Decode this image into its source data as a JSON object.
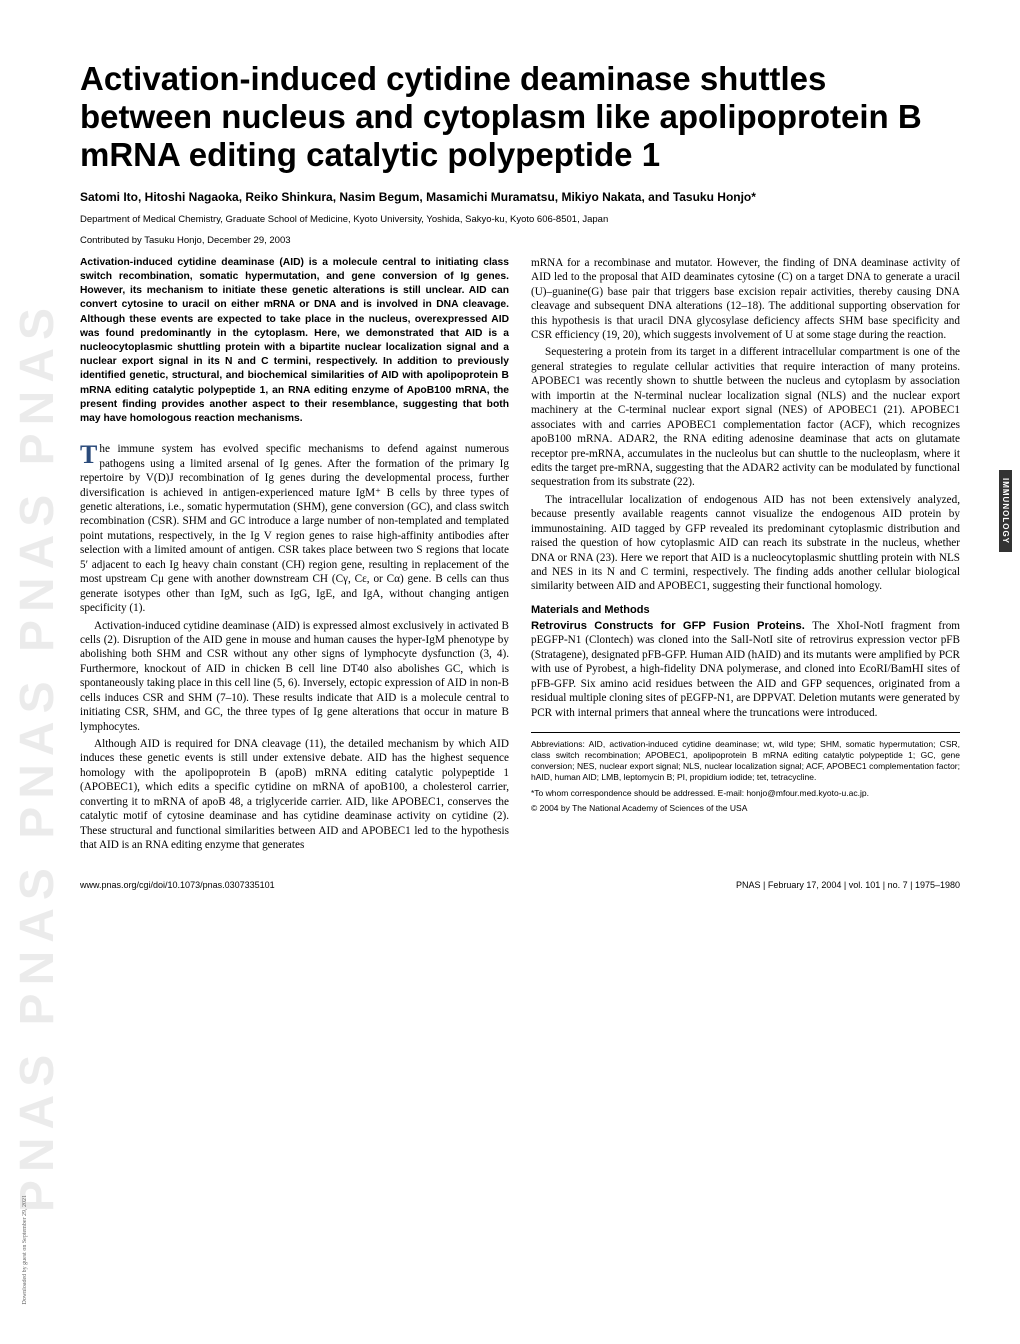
{
  "watermark": "PNAS  PNAS  PNAS  PNAS  PNAS",
  "download_note": "Downloaded by guest on September 29, 2021",
  "title": "Activation-induced cytidine deaminase shuttles between nucleus and cytoplasm like apolipoprotein B mRNA editing catalytic polypeptide 1",
  "authors": "Satomi Ito, Hitoshi Nagaoka, Reiko Shinkura, Nasim Begum, Masamichi Muramatsu, Mikiyo Nakata, and Tasuku Honjo*",
  "affiliation": "Department of Medical Chemistry, Graduate School of Medicine, Kyoto University, Yoshida, Sakyo-ku, Kyoto 606-8501, Japan",
  "contributed": "Contributed by Tasuku Honjo, December 29, 2003",
  "abstract": "Activation-induced cytidine deaminase (AID) is a molecule central to initiating class switch recombination, somatic hypermutation, and gene conversion of Ig genes. However, its mechanism to initiate these genetic alterations is still unclear. AID can convert cytosine to uracil on either mRNA or DNA and is involved in DNA cleavage. Although these events are expected to take place in the nucleus, overexpressed AID was found predominantly in the cytoplasm. Here, we demonstrated that AID is a nucleocytoplasmic shuttling protein with a bipartite nuclear localization signal and a nuclear export signal in its N and C termini, respectively. In addition to previously identified genetic, structural, and biochemical similarities of AID with apolipoprotein B mRNA editing catalytic polypeptide 1, an RNA editing enzyme of ApoB100 mRNA, the present finding provides another aspect to their resemblance, suggesting that both may have homologous reaction mechanisms.",
  "para1_first": "T",
  "para1": "he immune system has evolved specific mechanisms to defend against numerous pathogens using a limited arsenal of Ig genes. After the formation of the primary Ig repertoire by V(D)J recombination of Ig genes during the developmental process, further diversification is achieved in antigen-experienced mature IgM⁺ B cells by three types of genetic alterations, i.e., somatic hypermutation (SHM), gene conversion (GC), and class switch recombination (CSR). SHM and GC introduce a large number of non-templated and templated point mutations, respectively, in the Ig V region genes to raise high-affinity antibodies after selection with a limited amount of antigen. CSR takes place between two S regions that locate 5′ adjacent to each Ig heavy chain constant (CH) region gene, resulting in replacement of the most upstream Cμ gene with another downstream CH (Cγ, Cε, or Cα) gene. B cells can thus generate isotypes other than IgM, such as IgG, IgE, and IgA, without changing antigen specificity (1).",
  "para2": "Activation-induced cytidine deaminase (AID) is expressed almost exclusively in activated B cells (2). Disruption of the AID gene in mouse and human causes the hyper-IgM phenotype by abolishing both SHM and CSR without any other signs of lymphocyte dysfunction (3, 4). Furthermore, knockout of AID in chicken B cell line DT40 also abolishes GC, which is spontaneously taking place in this cell line (5, 6). Inversely, ectopic expression of AID in non-B cells induces CSR and SHM (7–10). These results indicate that AID is a molecule central to initiating CSR, SHM, and GC, the three types of Ig gene alterations that occur in mature B lymphocytes.",
  "para3": "Although AID is required for DNA cleavage (11), the detailed mechanism by which AID induces these genetic events is still under extensive debate. AID has the highest sequence homology with the apolipoprotein B (apoB) mRNA editing catalytic polypeptide 1 (APOBEC1), which edits a specific cytidine on mRNA of apoB100, a cholesterol carrier, converting it to mRNA of apoB 48, a triglyceride carrier. AID, like APOBEC1, conserves the catalytic motif of cytosine deaminase and has cytidine deaminase activity on cytidine (2). These structural and functional similarities between AID and APOBEC1 led to the hypothesis that AID is an RNA editing enzyme that generates",
  "para4": "mRNA for a recombinase and mutator. However, the finding of DNA deaminase activity of AID led to the proposal that AID deaminates cytosine (C) on a target DNA to generate a uracil (U)–guanine(G) base pair that triggers base excision repair activities, thereby causing DNA cleavage and subsequent DNA alterations (12–18). The additional supporting observation for this hypothesis is that uracil DNA glycosylase deficiency affects SHM base specificity and CSR efficiency (19, 20), which suggests involvement of U at some stage during the reaction.",
  "para5": "Sequestering a protein from its target in a different intracellular compartment is one of the general strategies to regulate cellular activities that require interaction of many proteins. APOBEC1 was recently shown to shuttle between the nucleus and cytoplasm by association with importin at the N-terminal nuclear localization signal (NLS) and the nuclear export machinery at the C-terminal nuclear export signal (NES) of APOBEC1 (21). APOBEC1 associates with and carries APOBEC1 complementation factor (ACF), which recognizes apoB100 mRNA. ADAR2, the RNA editing adenosine deaminase that acts on glutamate receptor pre-mRNA, accumulates in the nucleolus but can shuttle to the nucleoplasm, where it edits the target pre-mRNA, suggesting that the ADAR2 activity can be modulated by functional sequestration from its substrate (22).",
  "para6": "The intracellular localization of endogenous AID has not been extensively analyzed, because presently available reagents cannot visualize the endogenous AID protein by immunostaining. AID tagged by GFP revealed its predominant cytoplasmic distribution and raised the question of how cytoplasmic AID can reach its substrate in the nucleus, whether DNA or RNA (23). Here we report that AID is a nucleocytoplasmic shuttling protein with NLS and NES in its N and C termini, respectively. The finding adds another cellular biological similarity between AID and APOBEC1, suggesting their functional homology.",
  "methods_head": "Materials and Methods",
  "retro_head": "Retrovirus Constructs for GFP Fusion Proteins. ",
  "retro_body": "The XhoI-NotI fragment from pEGFP-N1 (Clontech) was cloned into the SalI-NotI site of retrovirus expression vector pFB (Stratagene), designated pFB-GFP. Human AID (hAID) and its mutants were amplified by PCR with use of Pyrobest, a high-fidelity DNA polymerase, and cloned into EcoRI/BamHI sites of pFB-GFP. Six amino acid residues between the AID and GFP sequences, originated from a residual multiple cloning sites of pEGFP-N1, are DPPVAT. Deletion mutants were generated by PCR with internal primers that anneal where the truncations were introduced.",
  "side_label": "IMMUNOLOGY",
  "abbreviations": "Abbreviations: AID, activation-induced cytidine deaminase; wt, wild type; SHM, somatic hypermutation; CSR, class switch recombination; APOBEC1, apolipoprotein B mRNA editing catalytic polypeptide 1; GC, gene conversion; NES, nuclear export signal; NLS, nuclear localization signal; ACF, APOBEC1 complementation factor; hAID, human AID; LMB, leptomycin B; PI, propidium iodide; tet, tetracycline.",
  "correspondence": "*To whom correspondence should be addressed. E-mail: honjo@mfour.med.kyoto-u.ac.jp.",
  "copyright": "© 2004 by The National Academy of Sciences of the USA",
  "doi": "www.pnas.org/cgi/doi/10.1073/pnas.0307335101",
  "pageinfo": "PNAS  |  February 17, 2004  |  vol. 101  |  no. 7  |  1975–1980"
}
